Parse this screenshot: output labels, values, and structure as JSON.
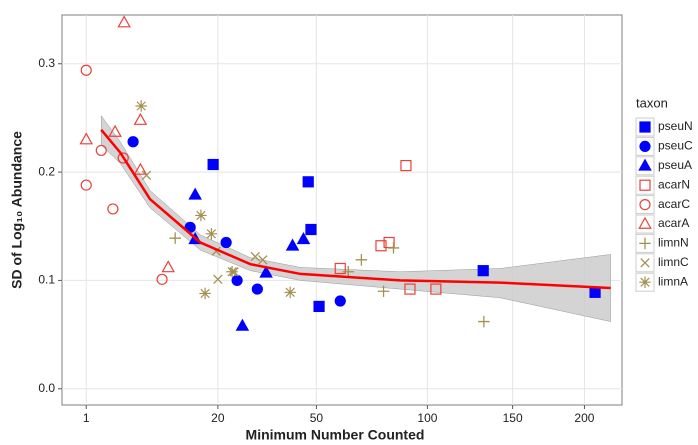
{
  "chart_data": {
    "type": "scatter",
    "x_label": "Minimum Number Counted",
    "y_label": "SD of Log₁₀ Abundance",
    "x_scale": "sqrt",
    "xlim": [
      0.13,
      229
    ],
    "ylim": [
      -0.015,
      0.345
    ],
    "xticks": [
      1,
      20,
      50,
      100,
      150,
      200
    ],
    "yticks": [
      {
        "value": 0,
        "label": "0.0"
      },
      0.1,
      0.2,
      0.3
    ],
    "grid": true,
    "legend_title": "taxon",
    "legend_position": "right",
    "series": [
      {
        "name": "pseuN",
        "color": "#0000ff",
        "shape": "square-filled",
        "x": [
          18.9,
          47,
          48,
          51,
          131.6,
          208
        ],
        "values": [
          0.207,
          0.191,
          0.147,
          0.076,
          0.109,
          0.089
        ]
      },
      {
        "name": "pseuC",
        "color": "#0000ff",
        "shape": "circle-filled",
        "x": [
          5.0,
          14.0,
          22,
          24.8,
          30.4,
          59.3
        ],
        "values": [
          0.228,
          0.149,
          0.135,
          0.1,
          0.092,
          0.081
        ]
      },
      {
        "name": "pseuA",
        "color": "#0000ff",
        "shape": "triangle-filled",
        "x": [
          15,
          15,
          26.2,
          33,
          41.5,
          45.3
        ],
        "values": [
          0.179,
          0.138,
          0.058,
          0.107,
          0.132,
          0.138
        ]
      },
      {
        "name": "acarN",
        "color": "#e8413a",
        "shape": "square-open",
        "x": [
          59.3,
          77,
          80.8,
          89,
          91,
          104.5
        ],
        "values": [
          0.111,
          0.132,
          0.135,
          0.206,
          0.092,
          0.092
        ]
      },
      {
        "name": "acarC",
        "color": "#e8413a",
        "shape": "circle-open",
        "x": [
          1,
          1,
          1.95,
          2.9,
          3.9,
          9
        ],
        "values": [
          0.294,
          0.188,
          0.22,
          0.166,
          0.213,
          0.101
        ]
      },
      {
        "name": "acarA",
        "color": "#e8413a",
        "shape": "triangle-open",
        "x": [
          1,
          4.0,
          3.1,
          5.9,
          5.9,
          10
        ],
        "values": [
          0.23,
          0.338,
          0.237,
          0.248,
          0.202,
          0.112
        ]
      },
      {
        "name": "limnN",
        "color": "#a39150",
        "shape": "plus",
        "x": [
          11.2,
          62.6,
          68.2,
          78.2,
          82.9,
          132
        ],
        "values": [
          0.139,
          0.108,
          0.119,
          0.09,
          0.13,
          0.062
        ]
      },
      {
        "name": "limnC",
        "color": "#a39150",
        "shape": "cross",
        "x": [
          6.7,
          19.6,
          20,
          24,
          29.8,
          32
        ],
        "values": [
          0.197,
          0.127,
          0.101,
          0.108,
          0.122,
          0.119
        ]
      },
      {
        "name": "limnA",
        "color": "#a39150",
        "shape": "asterisk",
        "x": [
          6,
          16.2,
          17.1,
          18.5,
          23.5,
          40.7
        ],
        "values": [
          0.261,
          0.16,
          0.088,
          0.143,
          0.108,
          0.089
        ]
      }
    ],
    "fit": {
      "color": "#ff0000",
      "band_color": "#cccccc",
      "x": [
        1.95,
        3.6,
        7.2,
        16.1,
        28.4,
        44.2,
        86,
        142,
        220
      ],
      "values": [
        0.239,
        0.218,
        0.175,
        0.135,
        0.115,
        0.106,
        0.1,
        0.098,
        0.093
      ],
      "lower": [
        0.225,
        0.208,
        0.167,
        0.128,
        0.109,
        0.1,
        0.092,
        0.084,
        0.062
      ],
      "upper": [
        0.252,
        0.228,
        0.183,
        0.142,
        0.121,
        0.112,
        0.108,
        0.111,
        0.124
      ]
    }
  }
}
